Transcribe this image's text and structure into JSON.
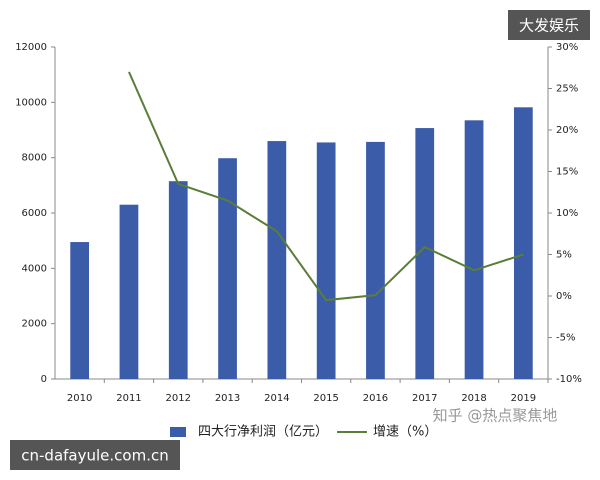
{
  "chart_data": {
    "type": "bar",
    "categories": [
      "2010",
      "2011",
      "2012",
      "2013",
      "2014",
      "2015",
      "2016",
      "2017",
      "2018",
      "2019"
    ],
    "series": [
      {
        "name": "四大行净利润（亿元）",
        "type": "bar",
        "color": "#3b5ca8",
        "values": [
          4950,
          6300,
          7150,
          7980,
          8600,
          8550,
          8570,
          9070,
          9350,
          9820
        ]
      },
      {
        "name": "增速（%）",
        "type": "line",
        "axis": "y2",
        "color": "#5b7d3a",
        "values": [
          null,
          27,
          13.5,
          11.5,
          7.8,
          -0.5,
          0.1,
          5.9,
          3.1,
          5.0
        ]
      }
    ],
    "ylim": [
      0,
      12000
    ],
    "yticks": [
      0,
      2000,
      4000,
      6000,
      8000,
      10000,
      12000
    ],
    "y2lim": [
      -10,
      30
    ],
    "y2ticks": [
      {
        "value": -10,
        "label": "-10%"
      },
      {
        "value": -5,
        "label": "-5%"
      },
      {
        "value": 0,
        "label": "0%"
      },
      {
        "value": 5,
        "label": "5%"
      },
      {
        "value": 10,
        "label": "10%"
      },
      {
        "value": 15,
        "label": "15%"
      },
      {
        "value": 20,
        "label": "20%"
      },
      {
        "value": 25,
        "label": "25%"
      },
      {
        "value": 30,
        "label": "30%"
      }
    ],
    "grid": false
  },
  "watermarks": [
    "大发娱乐",
    "知乎 @热点聚焦地",
    "cn-dafayule.com.cn"
  ]
}
